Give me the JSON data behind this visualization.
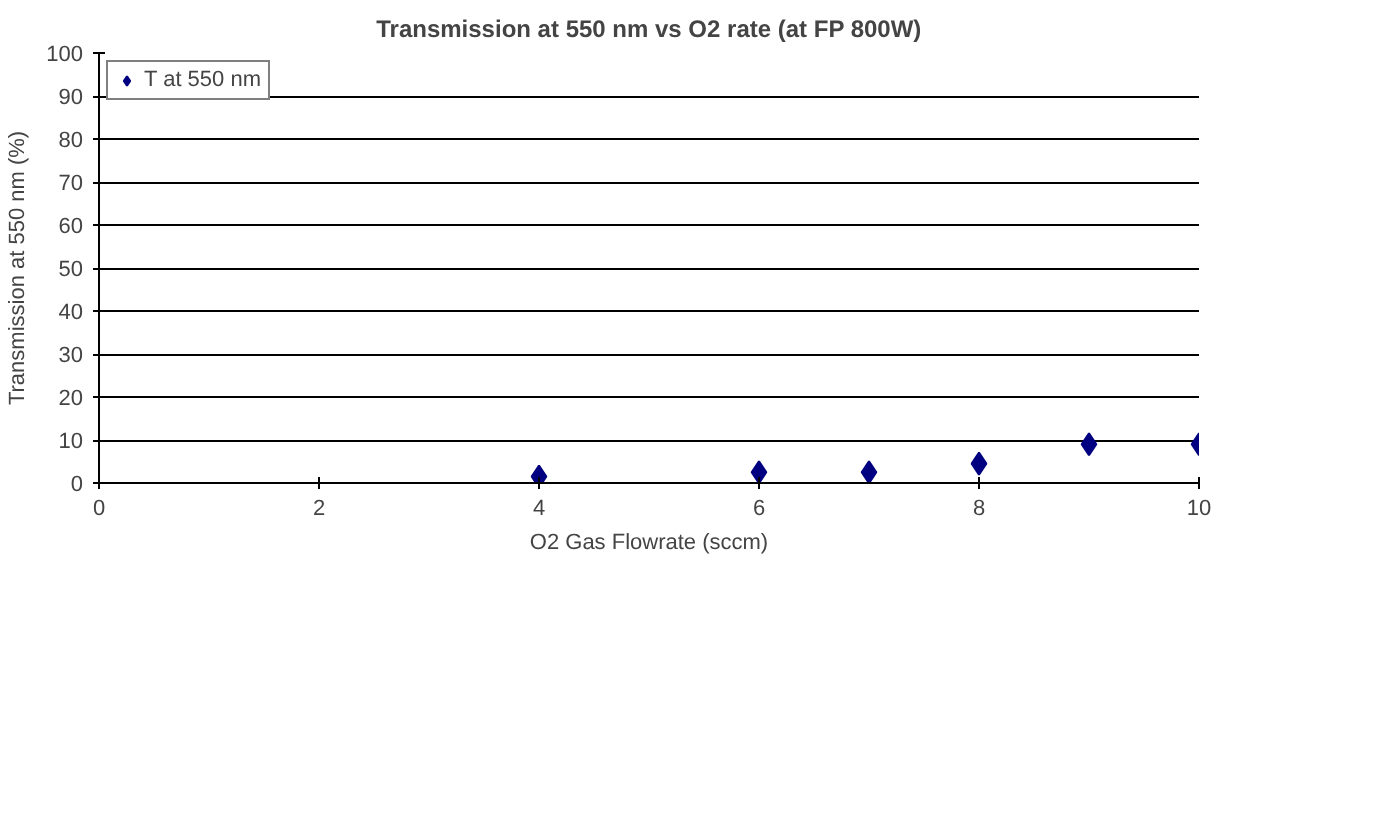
{
  "chart_data": {
    "type": "scatter",
    "title": "Transmission at 550 nm vs O2 rate (at FP 800W)",
    "xlabel": "O2 Gas Flowrate (sccm)",
    "ylabel": "Transmission at 550 nm (%)",
    "x": [
      4,
      6,
      7,
      8,
      9,
      10
    ],
    "series": [
      {
        "name": "T at 550 nm",
        "color": "#000080",
        "values": [
          1.5,
          2.5,
          2.5,
          4.5,
          9,
          9
        ]
      }
    ],
    "xlim": [
      0,
      10
    ],
    "xticks": [
      0,
      2,
      4,
      6,
      8,
      10
    ],
    "ylim": [
      0,
      100
    ],
    "yticks": [
      0,
      10,
      20,
      30,
      40,
      50,
      60,
      70,
      80,
      90,
      100
    ],
    "grid": "y",
    "legend": "top left",
    "marker": "diamond"
  }
}
